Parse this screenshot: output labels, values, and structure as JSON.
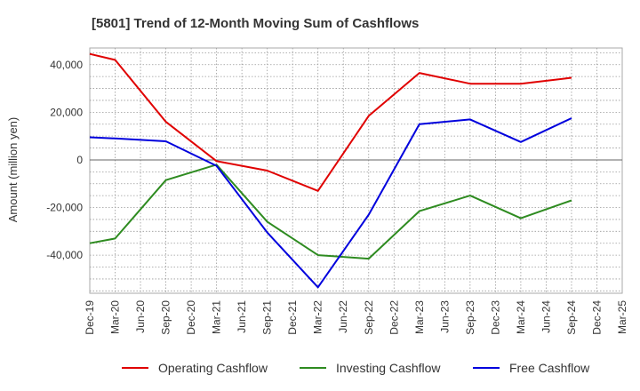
{
  "chart_data": {
    "type": "line",
    "title": "[5801]  Trend of 12-Month Moving Sum of Cashflows",
    "xlabel": "",
    "ylabel": "Amount (million yen)",
    "ylim": [
      -56000,
      47000
    ],
    "yticks": [
      -40000,
      -20000,
      0,
      20000,
      40000
    ],
    "ytick_labels": [
      "-40,000",
      "-20,000",
      "0",
      "20,000",
      "40,000"
    ],
    "categories": [
      "Dec-19",
      "Mar-20",
      "Jun-20",
      "Sep-20",
      "Dec-20",
      "Mar-21",
      "Jun-21",
      "Sep-21",
      "Dec-21",
      "Mar-22",
      "Jun-22",
      "Sep-22",
      "Dec-22",
      "Mar-23",
      "Jun-23",
      "Sep-23",
      "Dec-23",
      "Mar-24",
      "Jun-24",
      "Sep-24",
      "Dec-24",
      "Mar-25"
    ],
    "grid": true,
    "legend_position": "bottom",
    "series": [
      {
        "name": "Operating Cashflow",
        "color": "#e00000",
        "values": [
          44500,
          42000,
          null,
          16000,
          null,
          -500,
          null,
          -4500,
          null,
          -13000,
          null,
          18500,
          null,
          36500,
          null,
          32000,
          null,
          32000,
          null,
          34500,
          null,
          null
        ]
      },
      {
        "name": "Investing Cashflow",
        "color": "#2e8b20",
        "values": [
          -35000,
          -33000,
          null,
          -8500,
          null,
          -2000,
          null,
          -26000,
          null,
          -40000,
          null,
          -41500,
          null,
          -21500,
          null,
          -15000,
          null,
          -24500,
          null,
          -17000,
          null,
          null
        ]
      },
      {
        "name": "Free Cashflow",
        "color": "#0000dd",
        "values": [
          9500,
          9000,
          null,
          7800,
          null,
          -2500,
          null,
          -30500,
          null,
          -53500,
          null,
          -23000,
          null,
          15000,
          null,
          17000,
          null,
          7500,
          null,
          17500,
          null,
          null
        ]
      }
    ]
  }
}
